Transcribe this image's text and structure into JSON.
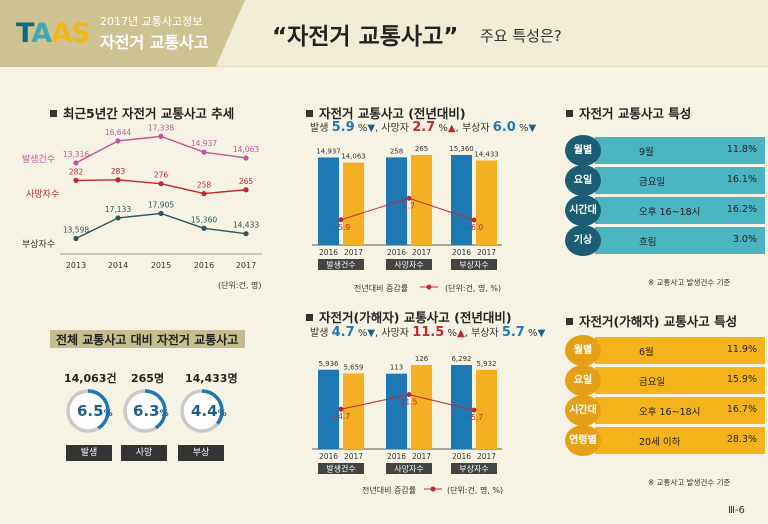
{
  "header": {
    "logo": [
      "T",
      "A",
      "AS"
    ],
    "subtitle": "2017년 교통사고정보",
    "section": "자전거 교통사고",
    "title": "“자전거 교통사고”",
    "title_suffix": "주요 특성은?"
  },
  "trend": {
    "title": "최근5년간 자전거 교통사고 추세",
    "unit": "(단위:건, 명)",
    "chart_data": {
      "type": "line",
      "x": [
        "2013",
        "2014",
        "2015",
        "2016",
        "2017"
      ],
      "series": [
        {
          "name": "발생건수",
          "values": [
            13316,
            16644,
            17338,
            14937,
            14063
          ],
          "color": "#c2559b"
        },
        {
          "name": "사망자수",
          "values": [
            282,
            283,
            276,
            258,
            265
          ],
          "color": "#c0282d"
        },
        {
          "name": "부상자수",
          "values": [
            13598,
            17133,
            17905,
            15360,
            14433
          ],
          "color": "#2b5560"
        }
      ],
      "value_labels": [
        [
          "13,316",
          "16,644",
          "17,338",
          "14,937",
          "14,063"
        ],
        [
          "282",
          "283",
          "276",
          "258",
          "265"
        ],
        [
          "13,598",
          "17,133",
          "17,905",
          "15,360",
          "14,433"
        ]
      ]
    }
  },
  "bike": {
    "title": "자전거 교통사고 (전년대비)",
    "stats": {
      "l1": "발생",
      "v1": "5.9",
      "l2": "사망자",
      "v2": "2.7",
      "l3": "부상자",
      "v3": "6.0",
      "pct": "%"
    },
    "legend": "전년대비 증감률",
    "unit": "(단위:건, 명, %)",
    "chart_data": {
      "type": "bar",
      "groups": [
        "발생건수",
        "사망자수",
        "부상자수"
      ],
      "categories": [
        "2016",
        "2017"
      ],
      "values": [
        [
          14937,
          14063
        ],
        [
          258,
          265
        ],
        [
          15360,
          14433
        ]
      ],
      "value_labels": [
        [
          "14,937",
          "14,063"
        ],
        [
          "258",
          "265"
        ],
        [
          "15,360",
          "14,433"
        ]
      ],
      "change": [
        -5.9,
        2.7,
        -6.0
      ],
      "change_labels": [
        "−5.9",
        "2.7",
        "−6.0"
      ]
    }
  },
  "victim": {
    "title": "자전거(가해자) 교통사고 (전년대비)",
    "stats": {
      "l1": "발생",
      "v1": "4.7",
      "l2": "사망자",
      "v2": "11.5",
      "l3": "부상자",
      "v3": "5.7",
      "pct": "%"
    },
    "legend": "전년대비 증감률",
    "unit": "(단위:건, 명, %)",
    "chart_data": {
      "type": "bar",
      "groups": [
        "발생건수",
        "사망자수",
        "부상자수"
      ],
      "categories": [
        "2016",
        "2017"
      ],
      "values": [
        [
          5936,
          5659
        ],
        [
          113,
          126
        ],
        [
          6292,
          5932
        ]
      ],
      "value_labels": [
        [
          "5,936",
          "5,659"
        ],
        [
          "113",
          "126"
        ],
        [
          "6,292",
          "5,932"
        ]
      ],
      "change": [
        -4.7,
        11.5,
        -5.7
      ],
      "change_labels": [
        "−4.7",
        "11.5",
        "−5.7"
      ]
    }
  },
  "share": {
    "title": "전체 교통사고 대비 자전거 교통사고",
    "items": [
      {
        "count": "14,063건",
        "pct": "6.5",
        "label": "발생",
        "value": 6.5
      },
      {
        "count": "265명",
        "pct": "6.3",
        "label": "사망",
        "value": 6.3
      },
      {
        "count": "14,433명",
        "pct": "4.4",
        "label": "부상",
        "value": 4.4
      }
    ],
    "pct_sign": "%"
  },
  "char1": {
    "title": "자전거 교통사고 특성",
    "rows": [
      {
        "label": "월별",
        "value": "9월",
        "pct": "11.8%"
      },
      {
        "label": "요일",
        "value": "금요일",
        "pct": "16.1%"
      },
      {
        "label": "시간대",
        "value": "오후 16~18시",
        "pct": "16.2%"
      },
      {
        "label": "기상",
        "value": "흐림",
        "pct": "3.0%"
      }
    ],
    "note": "※ 교통사고 발생건수 기준"
  },
  "char2": {
    "title": "자전거(가해자) 교통사고 특성",
    "rows": [
      {
        "label": "월별",
        "value": "6월",
        "pct": "11.9%"
      },
      {
        "label": "요일",
        "value": "금요일",
        "pct": "15.9%"
      },
      {
        "label": "시간대",
        "value": "오후 16~18시",
        "pct": "16.7%"
      },
      {
        "label": "연령별",
        "value": "20세 이하",
        "pct": "28.3%"
      }
    ],
    "note": "※ 교통사고 발생건수 기준"
  },
  "page": "Ⅲ-6",
  "colors": {
    "blue": "#1e78b4",
    "orange": "#f4b022",
    "teal": "#4bb4c1",
    "teal_dark": "#1b5d74",
    "gold": "#f5b31b",
    "gold_dark": "#e5a018"
  }
}
